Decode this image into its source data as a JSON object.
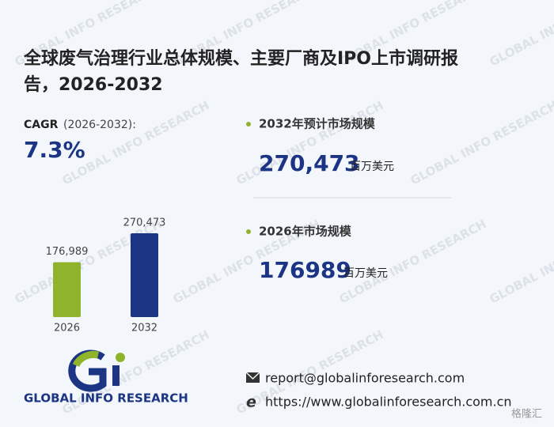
{
  "title": "全球废气治理行业总体规模、主要厂商及IPO上市调研报告，2026-2032",
  "title_line1": "全球废气治理行业总体规模、主要厂商及IPO上市调研报",
  "title_line2": "告，2026-2032",
  "cagr": {
    "label": "CAGR",
    "period": "(2026-2032):",
    "value": "7.3%"
  },
  "stats": [
    {
      "label": "2032年预计市场规模",
      "value": "270,473",
      "unit": "百万美元"
    },
    {
      "label": "2026年市场规模",
      "value": "176989",
      "unit": "百万美元"
    }
  ],
  "chart_data": {
    "type": "bar",
    "categories": [
      "2026",
      "2032"
    ],
    "values": [
      176989,
      270473
    ],
    "value_labels": [
      "176,989",
      "270,473"
    ],
    "colors": [
      "#8fb42b",
      "#1b3584"
    ]
  },
  "logo": "GLOBAL INFO RESEARCH",
  "watermark": "GLOBAL INFO RESEARCH",
  "contact": {
    "email": "report@globalinforesearch.com",
    "website": "https://www.globalinforesearch.com.cn"
  },
  "source_mark": "格隆汇"
}
